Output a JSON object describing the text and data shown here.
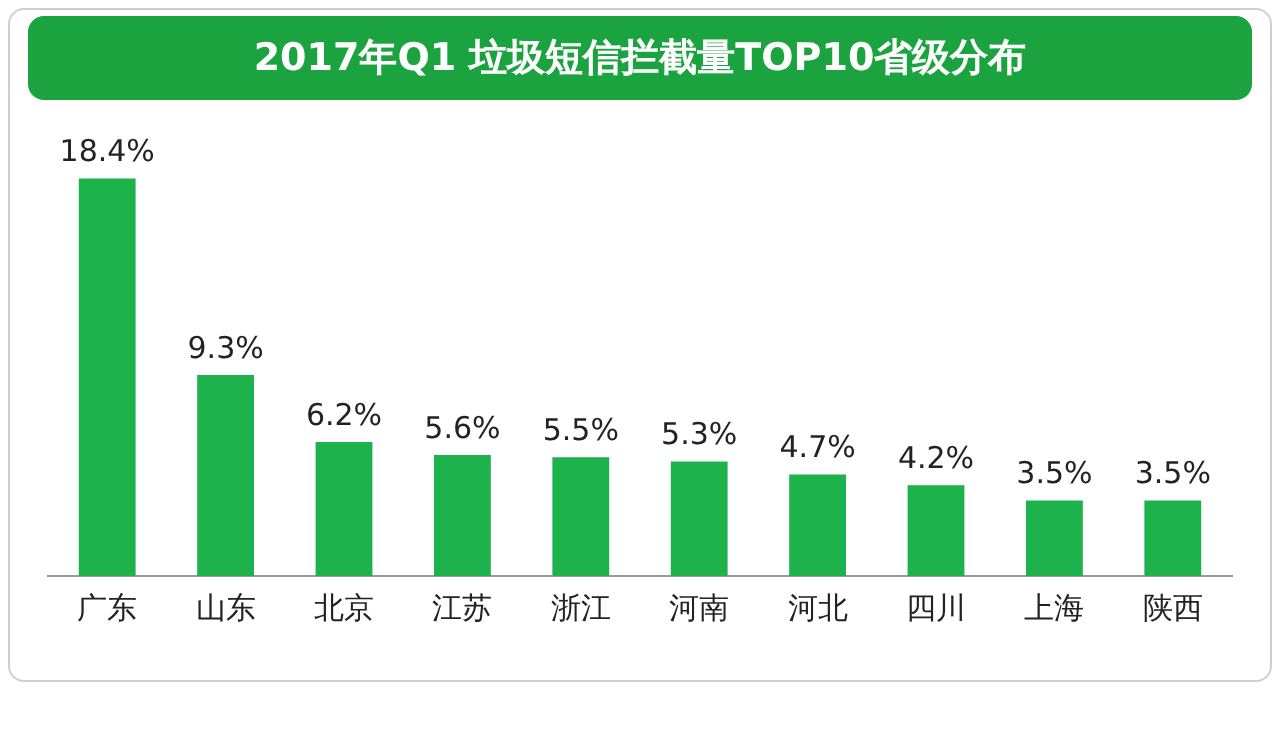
{
  "chart_data": {
    "type": "bar",
    "title": "2017年Q1 垃圾短信拦截量TOP10省级分布",
    "categories": [
      "广东",
      "山东",
      "北京",
      "江苏",
      "浙江",
      "河南",
      "河北",
      "四川",
      "上海",
      "陕西"
    ],
    "values": [
      18.4,
      9.3,
      6.2,
      5.6,
      5.5,
      5.3,
      4.7,
      4.2,
      3.5,
      3.5
    ],
    "value_labels": [
      "18.4%",
      "9.3%",
      "6.2%",
      "5.6%",
      "5.5%",
      "5.3%",
      "4.7%",
      "4.2%",
      "3.5%",
      "3.5%"
    ],
    "color": "#1db24b",
    "grid": false,
    "legend": false
  }
}
